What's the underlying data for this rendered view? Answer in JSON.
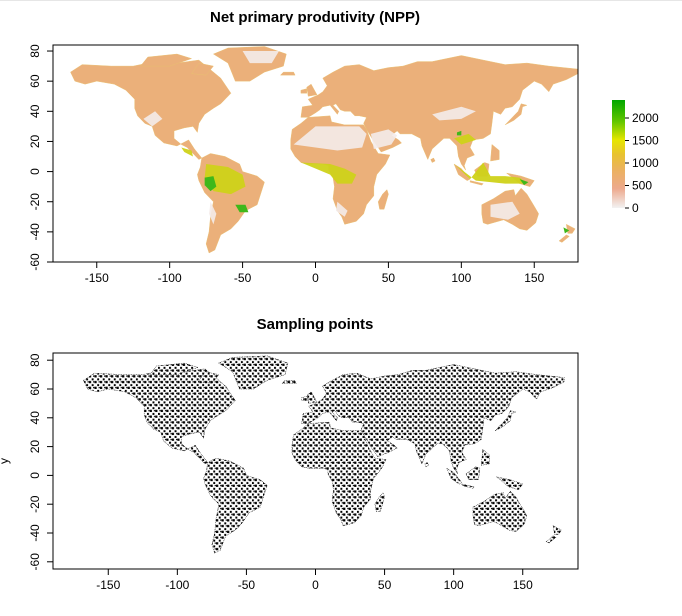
{
  "panels": [
    {
      "title": "Net primary produtivity (NPP)",
      "x_ticks": [
        "-150",
        "-100",
        "-50",
        "0",
        "50",
        "100",
        "150"
      ],
      "y_ticks": [
        "-60",
        "-40",
        "-20",
        "0",
        "20",
        "40",
        "60",
        "80"
      ],
      "legend": {
        "ticks": [
          "2000",
          "1500",
          "1000",
          "500",
          "0"
        ],
        "colors": [
          "#00a600",
          "#63c600",
          "#e6e600",
          "#e8c32e",
          "#ebb25e",
          "#eda98d",
          "#f2f2f2"
        ]
      }
    },
    {
      "title": "Sampling points",
      "ylabel": "y",
      "x_ticks": [
        "-150",
        "-100",
        "-50",
        "0",
        "50",
        "100",
        "150"
      ],
      "y_ticks": [
        "-60",
        "-40",
        "-20",
        "0",
        "20",
        "40",
        "60",
        "80"
      ]
    }
  ],
  "chart_data": [
    {
      "type": "heatmap",
      "title": "Net primary produtivity (NPP)",
      "xlim": [
        -180,
        180
      ],
      "ylim": [
        -60,
        84
      ],
      "legend_position": "right",
      "scale": {
        "min": 0,
        "max": 2400,
        "ticks": [
          0,
          500,
          1000,
          1500,
          2000
        ]
      }
    },
    {
      "type": "scatter",
      "title": "Sampling points",
      "ylabel": "y",
      "xlim": [
        -190,
        190
      ],
      "ylim": [
        -65,
        85
      ]
    }
  ]
}
